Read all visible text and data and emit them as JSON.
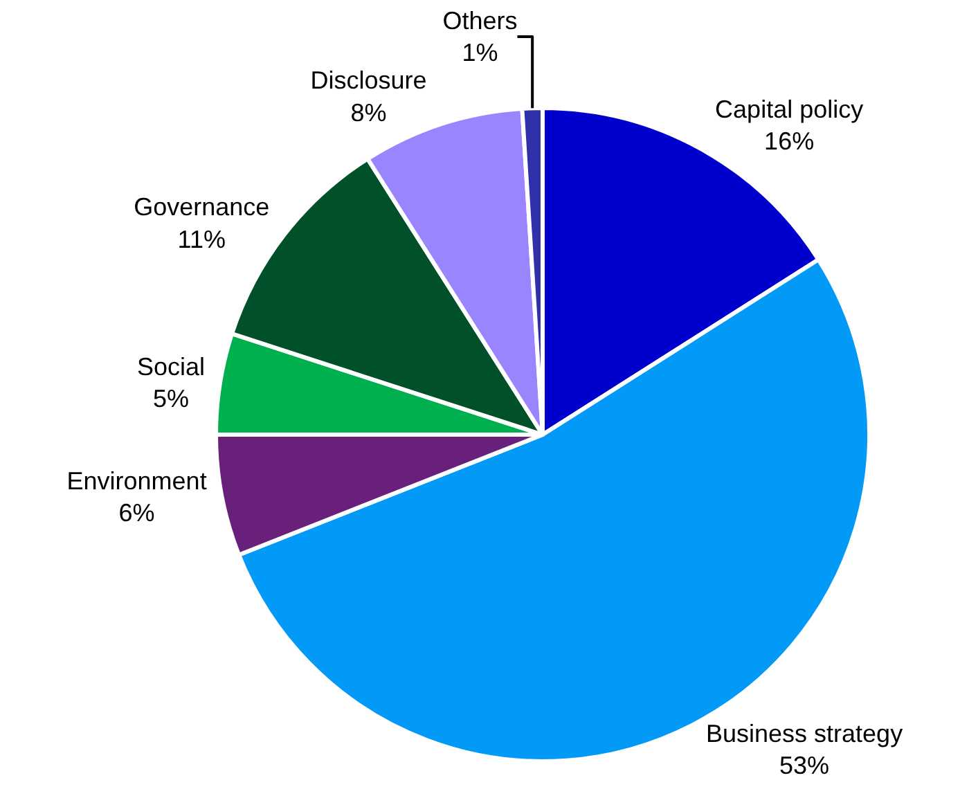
{
  "chart_data": {
    "type": "pie",
    "categories": [
      "Capital policy",
      "Business strategy",
      "Environment",
      "Social",
      "Governance",
      "Disclosure",
      "Others"
    ],
    "values": [
      16,
      53,
      6,
      5,
      11,
      8,
      1
    ],
    "value_labels": [
      "16%",
      "53%",
      "6%",
      "5%",
      "11%",
      "8%",
      "1%"
    ],
    "colors": [
      "#0000cc",
      "#0399f7",
      "#68207a",
      "#00b04f",
      "#005129",
      "#9b85ff",
      "#3030a8"
    ],
    "legend": false
  }
}
